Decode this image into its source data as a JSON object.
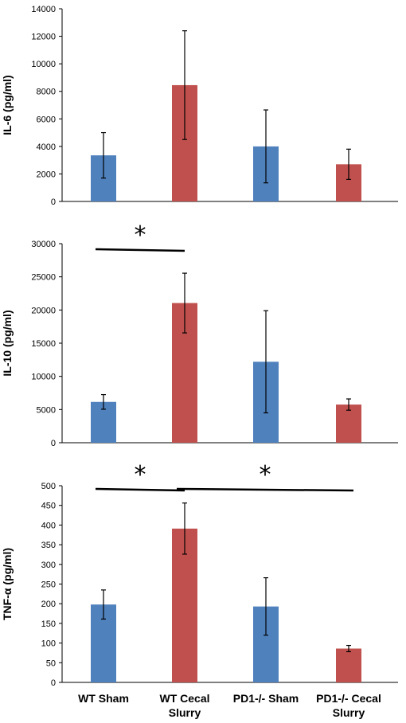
{
  "colors": {
    "sham": "#4f81bd",
    "cecal": "#c0504d",
    "axis": "#000000",
    "error": "#000000"
  },
  "categories": [
    [
      "WT Sham"
    ],
    [
      "WT Cecal",
      "Slurry"
    ],
    [
      "PD1-/- Sham"
    ],
    [
      "PD1-/- Cecal",
      "Slurry"
    ]
  ],
  "chart_data": [
    {
      "type": "bar",
      "ylabel": "IL-6 (pg/ml)",
      "ylim": [
        0,
        14000
      ],
      "ytick_step": 2000,
      "values": [
        3350,
        8450,
        4000,
        2700
      ],
      "errors": [
        1650,
        3950,
        2650,
        1100
      ],
      "significance": []
    },
    {
      "type": "bar",
      "ylabel": "IL-10 (pg/ml)",
      "ylim": [
        0,
        30000
      ],
      "ytick_step": 5000,
      "values": [
        6150,
        21050,
        12200,
        5750
      ],
      "errors": [
        1100,
        4500,
        7700,
        850
      ],
      "significance": [
        {
          "from": 0,
          "to": 1,
          "label": "*"
        }
      ]
    },
    {
      "type": "bar",
      "ylabel": "TNF-α (pg/ml)",
      "ylim": [
        0,
        500
      ],
      "ytick_step": 50,
      "values": [
        198,
        391,
        193,
        86
      ],
      "errors": [
        37,
        65,
        73,
        8
      ],
      "significance": [
        {
          "from": 0,
          "to": 1,
          "label": "*"
        },
        {
          "from": 1,
          "to": 3,
          "label": "*"
        }
      ]
    }
  ]
}
